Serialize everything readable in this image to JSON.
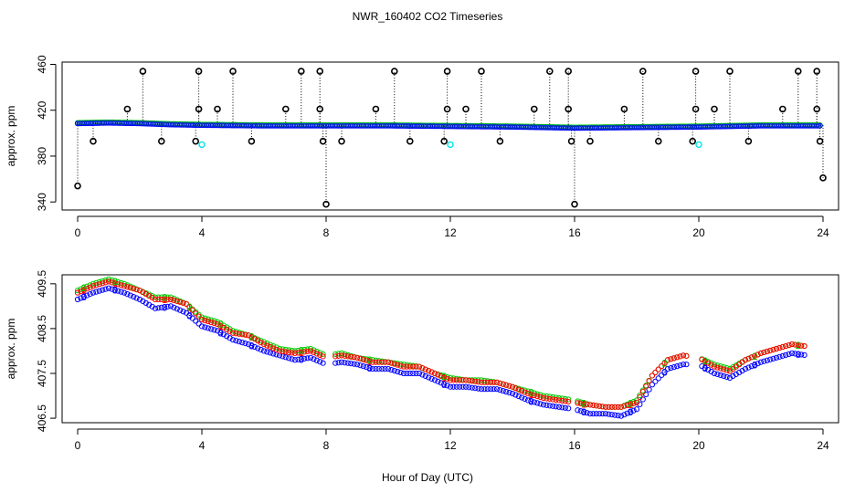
{
  "title": "NWR_160402  CO2 Timeseries",
  "xlabel": "Hour of Day (UTC)",
  "colors": {
    "raw_points": "#000000",
    "series1": "#ff0000",
    "series2": "#00cc00",
    "series3": "#0000ff",
    "cyan_points": "#00e5ee",
    "axes": "#000000"
  },
  "chart_data": [
    {
      "type": "scatter",
      "panel": "top",
      "title": "NWR_160402  CO2 Timeseries",
      "xlabel": "",
      "ylabel": "approx. ppm",
      "xlim": [
        -0.5,
        24.5
      ],
      "ylim": [
        333,
        462
      ],
      "xticks": [
        0,
        4,
        8,
        12,
        16,
        20,
        24
      ],
      "yticks": [
        340,
        380,
        420,
        460
      ],
      "ytick_labels": [
        "340",
        "380",
        "420",
        "460"
      ],
      "baseline": [
        [
          0,
          409
        ],
        [
          1,
          409.5
        ],
        [
          2,
          409
        ],
        [
          3,
          408
        ],
        [
          4,
          407.5
        ],
        [
          6,
          407
        ],
        [
          8,
          407
        ],
        [
          10,
          407
        ],
        [
          12,
          406.5
        ],
        [
          14,
          406
        ],
        [
          16,
          405
        ],
        [
          18,
          405.5
        ],
        [
          20,
          406
        ],
        [
          22,
          407
        ],
        [
          24,
          407
        ]
      ],
      "spikes": [
        {
          "x": 0.0,
          "y": 354
        },
        {
          "x": 0.5,
          "y": 393
        },
        {
          "x": 1.6,
          "y": 421
        },
        {
          "x": 2.1,
          "y": 454
        },
        {
          "x": 2.7,
          "y": 393
        },
        {
          "x": 3.8,
          "y": 393
        },
        {
          "x": 3.9,
          "y": 421
        },
        {
          "x": 3.9,
          "y": 454
        },
        {
          "x": 4.5,
          "y": 421
        },
        {
          "x": 5.0,
          "y": 454
        },
        {
          "x": 5.6,
          "y": 393
        },
        {
          "x": 6.7,
          "y": 421
        },
        {
          "x": 7.2,
          "y": 454
        },
        {
          "x": 7.8,
          "y": 454
        },
        {
          "x": 7.8,
          "y": 421
        },
        {
          "x": 7.9,
          "y": 393
        },
        {
          "x": 8.0,
          "y": 338
        },
        {
          "x": 8.5,
          "y": 393
        },
        {
          "x": 9.6,
          "y": 421
        },
        {
          "x": 10.2,
          "y": 454
        },
        {
          "x": 10.7,
          "y": 393
        },
        {
          "x": 11.8,
          "y": 393
        },
        {
          "x": 11.9,
          "y": 421
        },
        {
          "x": 11.9,
          "y": 454
        },
        {
          "x": 12.5,
          "y": 421
        },
        {
          "x": 13.0,
          "y": 454
        },
        {
          "x": 13.6,
          "y": 393
        },
        {
          "x": 14.7,
          "y": 421
        },
        {
          "x": 15.2,
          "y": 454
        },
        {
          "x": 15.8,
          "y": 454
        },
        {
          "x": 15.8,
          "y": 421
        },
        {
          "x": 15.9,
          "y": 393
        },
        {
          "x": 16.0,
          "y": 338
        },
        {
          "x": 16.5,
          "y": 393
        },
        {
          "x": 17.6,
          "y": 421
        },
        {
          "x": 18.2,
          "y": 454
        },
        {
          "x": 18.7,
          "y": 393
        },
        {
          "x": 19.8,
          "y": 393
        },
        {
          "x": 19.9,
          "y": 421
        },
        {
          "x": 19.9,
          "y": 454
        },
        {
          "x": 20.5,
          "y": 421
        },
        {
          "x": 21.0,
          "y": 454
        },
        {
          "x": 21.6,
          "y": 393
        },
        {
          "x": 22.7,
          "y": 421
        },
        {
          "x": 23.2,
          "y": 454
        },
        {
          "x": 23.8,
          "y": 454
        },
        {
          "x": 23.8,
          "y": 421
        },
        {
          "x": 23.9,
          "y": 393
        },
        {
          "x": 24.0,
          "y": 361
        }
      ],
      "cyan_points": [
        {
          "x": 4.0,
          "y": 390
        },
        {
          "x": 12.0,
          "y": 390
        },
        {
          "x": 20.0,
          "y": 390
        }
      ]
    },
    {
      "type": "scatter",
      "panel": "bottom",
      "xlabel": "Hour of Day (UTC)",
      "ylabel": "approx. ppm",
      "xlim": [
        -0.5,
        24.5
      ],
      "ylim": [
        406.4,
        409.7
      ],
      "xticks": [
        0,
        4,
        8,
        12,
        16,
        20,
        24
      ],
      "yticks": [
        406.5,
        407.5,
        408.5,
        409.5
      ],
      "ytick_labels": [
        "406.5",
        "407.5",
        "408.5",
        "409.5"
      ],
      "series_markers": [
        "1",
        "2",
        "3"
      ],
      "series": [
        {
          "name": "1",
          "x": [
            0.0,
            0.5,
            1.0,
            1.5,
            2.0,
            2.5,
            3.0,
            3.5,
            4.0,
            4.5,
            5.0,
            5.5,
            6.0,
            6.5,
            7.0,
            7.5,
            8.0,
            8.5,
            9.0,
            9.5,
            10.0,
            10.5,
            11.0,
            11.5,
            12.0,
            12.5,
            13.0,
            13.5,
            14.0,
            14.5,
            15.0,
            15.5,
            16.0,
            16.5,
            17.0,
            17.5,
            18.0,
            18.5,
            19.0,
            19.5,
            20.0,
            20.5,
            21.0,
            21.5,
            22.0,
            22.5,
            23.0,
            23.5
          ],
          "values": [
            409.3,
            409.45,
            409.55,
            409.45,
            409.35,
            409.15,
            409.15,
            409.05,
            408.7,
            408.6,
            408.4,
            408.35,
            408.15,
            408.0,
            407.95,
            408.0,
            407.85,
            407.9,
            407.85,
            407.75,
            407.75,
            407.65,
            407.65,
            407.5,
            407.35,
            407.35,
            407.3,
            407.3,
            407.2,
            407.05,
            406.95,
            406.9,
            406.85,
            406.8,
            406.75,
            406.75,
            406.85,
            407.45,
            407.8,
            407.9,
            407.85,
            407.65,
            407.55,
            407.8,
            407.95,
            408.05,
            408.15,
            408.1
          ]
        },
        {
          "name": "2",
          "x": [
            0.0,
            0.5,
            1.0,
            1.5,
            2.0,
            2.5,
            3.0,
            3.5,
            4.0,
            4.5,
            5.0,
            5.5,
            6.0,
            6.5,
            7.0,
            7.5,
            8.0,
            8.5,
            9.0,
            9.5,
            10.0,
            10.5,
            11.0,
            11.5,
            12.0,
            12.5,
            13.0,
            13.5,
            14.0,
            14.5,
            15.0,
            15.5,
            16.0,
            16.5,
            17.0,
            17.5,
            18.0,
            18.5,
            19.0,
            19.5,
            20.0,
            20.5,
            21.0,
            21.5,
            22.0,
            22.5,
            23.0,
            23.5
          ],
          "values": [
            409.35,
            409.5,
            409.6,
            409.5,
            409.35,
            409.2,
            409.2,
            409.05,
            408.75,
            408.65,
            408.45,
            408.35,
            408.2,
            408.05,
            408.0,
            408.05,
            407.9,
            407.95,
            407.85,
            407.8,
            407.75,
            407.7,
            407.65,
            407.5,
            407.4,
            407.35,
            407.35,
            407.3,
            407.2,
            407.1,
            407.0,
            406.95,
            406.9,
            406.8,
            406.75,
            406.75,
            406.9,
            407.45,
            407.8,
            407.9,
            407.85,
            407.7,
            407.6,
            407.8,
            407.95,
            408.05,
            408.15,
            408.1
          ]
        },
        {
          "name": "3",
          "x": [
            0.0,
            0.5,
            1.0,
            1.5,
            2.0,
            2.5,
            3.0,
            3.5,
            4.0,
            4.5,
            5.0,
            5.5,
            6.0,
            6.5,
            7.0,
            7.5,
            8.0,
            8.5,
            9.0,
            9.5,
            10.0,
            10.5,
            11.0,
            11.5,
            12.0,
            12.5,
            13.0,
            13.5,
            14.0,
            14.5,
            15.0,
            15.5,
            16.0,
            16.5,
            17.0,
            17.5,
            18.0,
            18.5,
            19.0,
            19.5,
            20.0,
            20.5,
            21.0,
            21.5,
            22.0,
            22.5,
            23.0,
            23.5
          ],
          "values": [
            409.15,
            409.3,
            409.4,
            409.3,
            409.15,
            408.95,
            409.0,
            408.85,
            408.55,
            408.45,
            408.25,
            408.15,
            408.0,
            407.9,
            407.8,
            407.85,
            407.7,
            407.75,
            407.7,
            407.6,
            407.6,
            407.5,
            407.5,
            407.35,
            407.2,
            407.2,
            407.15,
            407.15,
            407.05,
            406.9,
            406.8,
            406.75,
            406.7,
            406.6,
            406.6,
            406.55,
            406.7,
            407.25,
            407.6,
            407.7,
            407.7,
            407.5,
            407.4,
            407.6,
            407.75,
            407.85,
            407.95,
            407.9
          ]
        }
      ]
    }
  ]
}
